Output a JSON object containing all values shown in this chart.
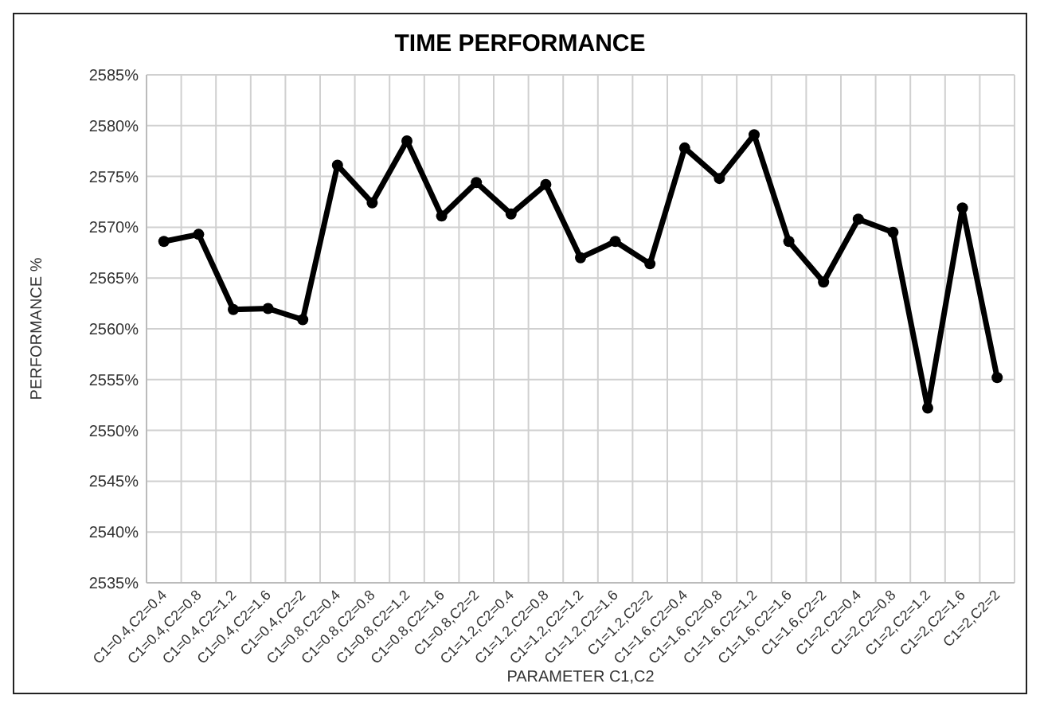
{
  "chart_data": {
    "type": "line",
    "title": "TIME PERFORMANCE",
    "xlabel": "PARAMETER C1,C2",
    "ylabel": "PERFORMANCE %",
    "categories": [
      "C1=0.4,C2=0.4",
      "C1=0.4,C2=0.8",
      "C1=0.4,C2=1.2",
      "C1=0.4,C2=1.6",
      "C1=0.4,C2=2",
      "C1=0.8,C2=0.4",
      "C1=0.8,C2=0.8",
      "C1=0.8,C2=1.2",
      "C1=0.8,C2=1.6",
      "C1=0.8,C2=2",
      "C1=1.2,C2=0.4",
      "C1=1.2,C2=0.8",
      "C1=1.2,C2=1.2",
      "C1=1.2,C2=1.6",
      "C1=1.2,C2=2",
      "C1=1.6,C2=0.4",
      "C1=1.6,C2=0.8",
      "C1=1.6,C2=1.2",
      "C1=1.6,C2=1.6",
      "C1=1.6,C2=2",
      "C1=2,C2=0.4",
      "C1=2,C2=0.8",
      "C1=2,C2=1.2",
      "C1=2,C2=1.6",
      "C1=2,C2=2"
    ],
    "series": [
      {
        "color": "#000000",
        "values": [
          2568.6,
          2569.3,
          2561.9,
          2562.0,
          2560.9,
          2576.1,
          2572.4,
          2578.5,
          2571.1,
          2574.4,
          2571.3,
          2574.2,
          2567.0,
          2568.6,
          2566.4,
          2577.8,
          2574.8,
          2579.1,
          2568.6,
          2564.6,
          2570.8,
          2569.5,
          2552.2,
          2571.9,
          2555.2
        ]
      }
    ],
    "ylim": [
      2535,
      2585
    ],
    "yticks": [
      {
        "value": 2535,
        "label": "2535%"
      },
      {
        "value": 2540,
        "label": "2540%"
      },
      {
        "value": 2545,
        "label": "2545%"
      },
      {
        "value": 2550,
        "label": "2550%"
      },
      {
        "value": 2555,
        "label": "2555%"
      },
      {
        "value": 2560,
        "label": "2560%"
      },
      {
        "value": 2565,
        "label": "2565%"
      },
      {
        "value": 2570,
        "label": "2570%"
      },
      {
        "value": 2575,
        "label": "2575%"
      },
      {
        "value": 2580,
        "label": "2580%"
      },
      {
        "value": 2585,
        "label": "2585%"
      }
    ],
    "grid": true,
    "legend": false,
    "marker": "circle",
    "line_style": "solid"
  }
}
